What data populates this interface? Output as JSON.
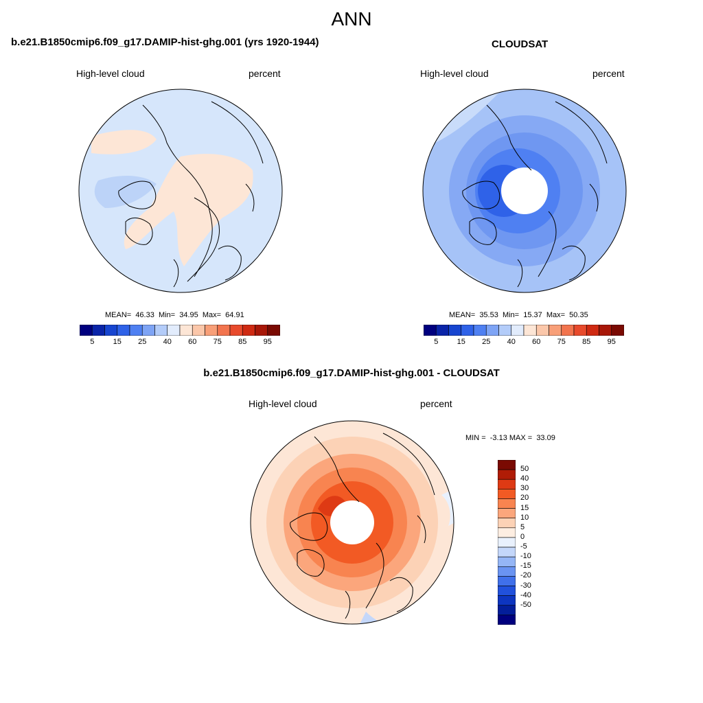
{
  "figure": {
    "title": "ANN"
  },
  "panel_model": {
    "title": "b.e21.B1850cmip6.f09_g17.DAMIP-hist-ghg.001 (yrs 1920-1944)",
    "left_label": "High-level cloud",
    "right_label": "percent",
    "stats": "MEAN=  46.33  Min=  34.95  Max=  64.91"
  },
  "panel_obs": {
    "title": "CLOUDSAT",
    "left_label": "High-level cloud",
    "right_label": "percent",
    "stats": "MEAN=  35.53  Min=  15.37  Max=  50.35"
  },
  "panel_diff": {
    "title": "b.e21.B1850cmip6.f09_g17.DAMIP-hist-ghg.001 - CLOUDSAT",
    "left_label": "High-level cloud",
    "right_label": "percent",
    "stats": "MIN =  -3.13 MAX =  33.09"
  },
  "colorbar_abs": {
    "colors": [
      "#00007f",
      "#0a24a8",
      "#1745d0",
      "#2f62e8",
      "#4f80f2",
      "#7ea4f5",
      "#b3ccf9",
      "#e2ecfc",
      "#fde6d6",
      "#fbc7aa",
      "#f89f78",
      "#f2744e",
      "#e84a2c",
      "#cf2a12",
      "#a81708",
      "#7a0a02"
    ],
    "tick_labels": [
      "5",
      "15",
      "25",
      "40",
      "60",
      "75",
      "85",
      "95"
    ]
  },
  "colorbar_diff": {
    "colors": [
      "#7a0a02",
      "#b01c06",
      "#de3a14",
      "#f25a24",
      "#f88450",
      "#fba67c",
      "#fcd2b6",
      "#fdeee2",
      "#e9f1fd",
      "#c4d7fa",
      "#95b6f6",
      "#6a94f2",
      "#4070ea",
      "#2151dc",
      "#0d35c0",
      "#031e9a",
      "#00007f"
    ],
    "tick_labels": [
      "50",
      "40",
      "30",
      "20",
      "15",
      "10",
      "5",
      "0",
      "-5",
      "-10",
      "-15",
      "-20",
      "-30",
      "-40",
      "-50"
    ]
  },
  "chart_data": [
    {
      "type": "heatmap",
      "title": "b.e21.B1850cmip6.f09_g17.DAMIP-hist-ghg.001 (yrs 1920-1944)",
      "variable": "High-level cloud",
      "units": "percent",
      "projection": "north polar stereographic",
      "mean": 46.33,
      "min": 34.95,
      "max": 64.91,
      "levels": [
        5,
        10,
        15,
        20,
        25,
        30,
        35,
        40,
        45,
        50,
        55,
        60,
        65,
        70,
        75,
        80,
        85,
        90,
        95
      ]
    },
    {
      "type": "heatmap",
      "title": "CLOUDSAT",
      "variable": "High-level cloud",
      "units": "percent",
      "projection": "north polar stereographic",
      "mean": 35.53,
      "min": 15.37,
      "max": 50.35,
      "levels": [
        5,
        10,
        15,
        20,
        25,
        30,
        35,
        40,
        45,
        50,
        55,
        60,
        65,
        70,
        75,
        80,
        85,
        90,
        95
      ]
    },
    {
      "type": "heatmap",
      "title": "b.e21.B1850cmip6.f09_g17.DAMIP-hist-ghg.001 - CLOUDSAT",
      "variable": "High-level cloud",
      "units": "percent",
      "projection": "north polar stereographic",
      "min": -3.13,
      "max": 33.09,
      "levels": [
        -50,
        -40,
        -30,
        -20,
        -15,
        -10,
        -5,
        0,
        5,
        10,
        15,
        20,
        30,
        40,
        50
      ]
    }
  ]
}
